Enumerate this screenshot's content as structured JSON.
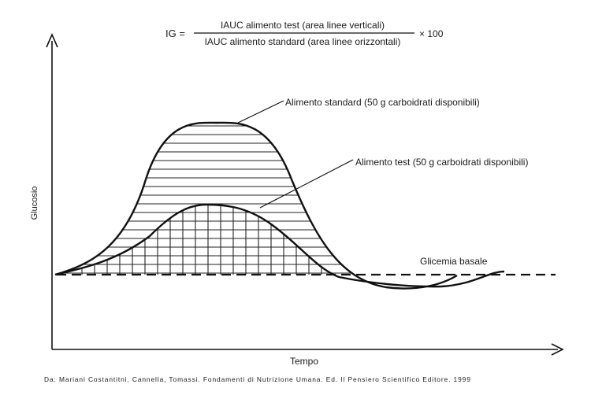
{
  "formula": {
    "lhs": "IG =",
    "numerator": "IAUC alimento test (area linee verticali)",
    "denominator": "IAUC alimento standard (area linee orizzontali)",
    "multiplier": "× 100"
  },
  "labels": {
    "standard_food": "Alimento standard (50 g carboidrati disponibili)",
    "test_food": "Alimento test (50 g carboidrati disponibili)",
    "baseline": "Glicemia basale"
  },
  "axes": {
    "y_label": "Glucosio",
    "x_label": "Tempo"
  },
  "source": "Da: Mariani Costantitni, Cannella, Tomassi. Fondamenti di Nutrizione Umana. Ed. Il Pensiero Scientifico Editore. 1999"
}
